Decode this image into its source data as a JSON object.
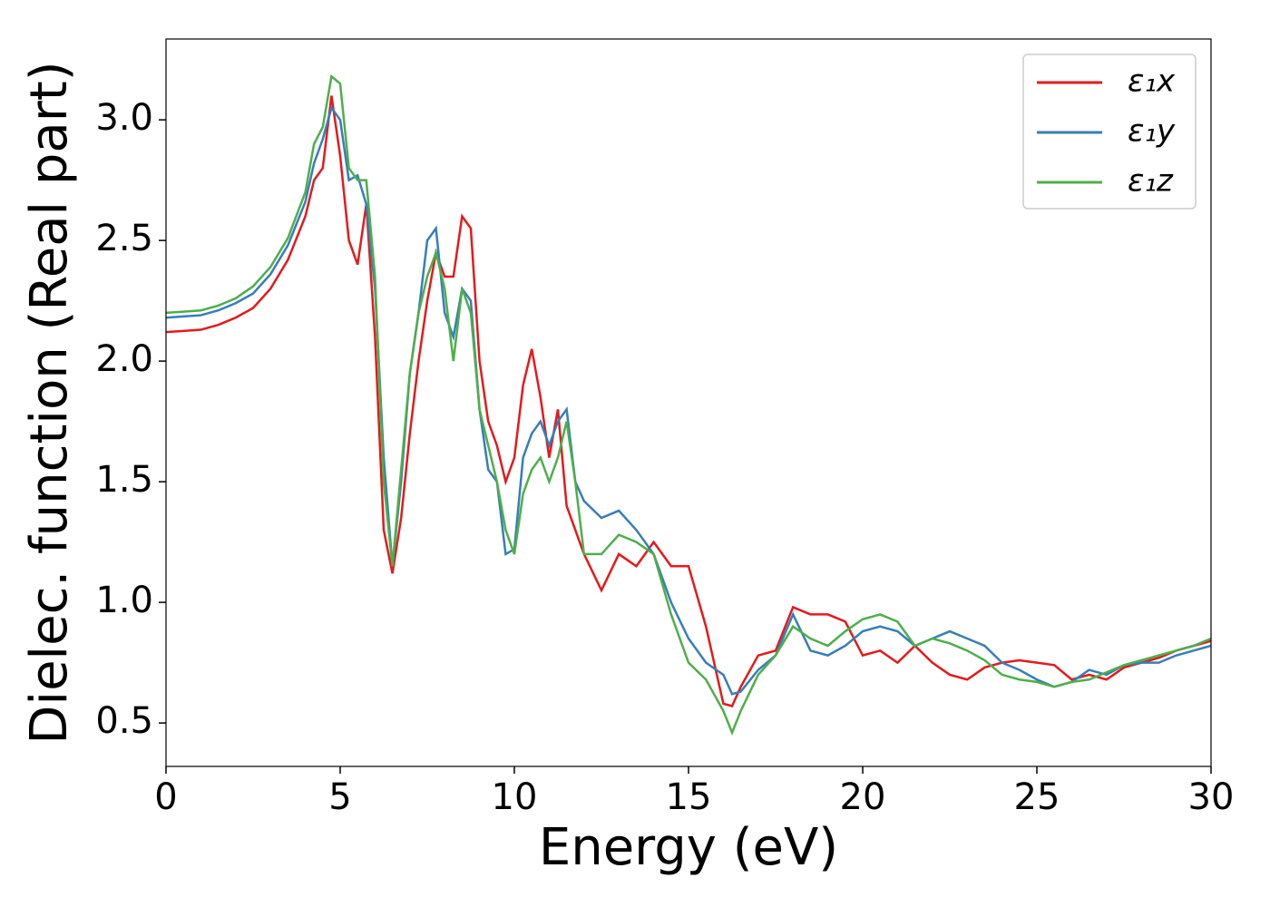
{
  "chart_data": {
    "type": "line",
    "xlabel": "Energy (eV)",
    "ylabel": "Dielec. function (Real part)",
    "x": [
      0,
      0.5,
      1,
      1.5,
      2,
      2.5,
      3,
      3.5,
      4,
      4.25,
      4.5,
      4.75,
      5,
      5.25,
      5.5,
      5.75,
      6,
      6.25,
      6.5,
      6.75,
      7,
      7.25,
      7.5,
      7.75,
      8,
      8.25,
      8.5,
      8.75,
      9,
      9.25,
      9.5,
      9.75,
      10,
      10.25,
      10.5,
      10.75,
      11,
      11.25,
      11.5,
      11.75,
      12,
      12.5,
      13,
      13.5,
      14,
      14.5,
      15,
      15.5,
      16,
      16.25,
      16.5,
      17,
      17.5,
      18,
      18.5,
      19,
      19.5,
      20,
      20.5,
      21,
      21.5,
      22,
      22.5,
      23,
      23.5,
      24,
      24.5,
      25,
      25.5,
      26,
      26.5,
      27,
      27.5,
      28,
      28.5,
      29,
      29.5,
      30
    ],
    "series": [
      {
        "name": "ε₁x",
        "color": "#e41a1c",
        "values": [
          2.12,
          2.125,
          2.13,
          2.15,
          2.18,
          2.22,
          2.3,
          2.42,
          2.6,
          2.75,
          2.8,
          3.1,
          2.85,
          2.5,
          2.4,
          2.65,
          2.1,
          1.3,
          1.12,
          1.35,
          1.7,
          2.0,
          2.25,
          2.45,
          2.35,
          2.35,
          2.6,
          2.55,
          2.0,
          1.75,
          1.65,
          1.5,
          1.6,
          1.9,
          2.05,
          1.85,
          1.6,
          1.8,
          1.4,
          1.3,
          1.2,
          1.05,
          1.2,
          1.15,
          1.25,
          1.15,
          1.15,
          0.9,
          0.58,
          0.57,
          0.65,
          0.78,
          0.8,
          0.98,
          0.95,
          0.95,
          0.92,
          0.78,
          0.8,
          0.75,
          0.82,
          0.75,
          0.7,
          0.68,
          0.73,
          0.75,
          0.76,
          0.75,
          0.74,
          0.68,
          0.7,
          0.68,
          0.73,
          0.75,
          0.77,
          0.8,
          0.82,
          0.84
        ]
      },
      {
        "name": "ε₁y",
        "color": "#377eb8",
        "values": [
          2.18,
          2.185,
          2.19,
          2.21,
          2.24,
          2.28,
          2.36,
          2.48,
          2.66,
          2.82,
          2.92,
          3.05,
          3.0,
          2.75,
          2.77,
          2.65,
          2.3,
          1.6,
          1.15,
          1.5,
          1.95,
          2.2,
          2.5,
          2.55,
          2.2,
          2.1,
          2.3,
          2.25,
          1.8,
          1.55,
          1.5,
          1.2,
          1.22,
          1.6,
          1.7,
          1.75,
          1.65,
          1.75,
          1.8,
          1.5,
          1.42,
          1.35,
          1.38,
          1.3,
          1.2,
          1.0,
          0.85,
          0.75,
          0.7,
          0.62,
          0.63,
          0.72,
          0.78,
          0.95,
          0.8,
          0.78,
          0.82,
          0.88,
          0.9,
          0.88,
          0.82,
          0.85,
          0.88,
          0.85,
          0.82,
          0.75,
          0.72,
          0.68,
          0.65,
          0.67,
          0.72,
          0.7,
          0.74,
          0.75,
          0.75,
          0.78,
          0.8,
          0.82
        ]
      },
      {
        "name": "ε₁z",
        "color": "#4daf4a",
        "values": [
          2.2,
          2.205,
          2.21,
          2.23,
          2.26,
          2.31,
          2.39,
          2.51,
          2.7,
          2.9,
          2.97,
          3.18,
          3.15,
          2.8,
          2.75,
          2.75,
          2.35,
          1.5,
          1.15,
          1.55,
          1.95,
          2.2,
          2.35,
          2.45,
          2.3,
          2.0,
          2.3,
          2.2,
          1.8,
          1.65,
          1.5,
          1.3,
          1.2,
          1.45,
          1.55,
          1.6,
          1.5,
          1.6,
          1.75,
          1.5,
          1.2,
          1.2,
          1.28,
          1.25,
          1.2,
          0.95,
          0.75,
          0.68,
          0.55,
          0.46,
          0.55,
          0.7,
          0.78,
          0.9,
          0.85,
          0.82,
          0.88,
          0.93,
          0.95,
          0.92,
          0.82,
          0.85,
          0.83,
          0.8,
          0.76,
          0.7,
          0.68,
          0.67,
          0.65,
          0.67,
          0.68,
          0.71,
          0.74,
          0.76,
          0.78,
          0.8,
          0.82,
          0.85
        ]
      }
    ],
    "xlim": [
      0,
      30
    ],
    "xticks": [
      0,
      5,
      10,
      15,
      20,
      25,
      30
    ],
    "ylim": [
      0.32,
      3.335
    ],
    "yticks": [
      0.5,
      {
        "value": 1,
        "label": "1.0"
      },
      1.5,
      {
        "value": 2,
        "label": "2.0"
      },
      2.5,
      {
        "value": 3,
        "label": "3.0"
      }
    ],
    "grid": false,
    "legend": "upper right"
  }
}
